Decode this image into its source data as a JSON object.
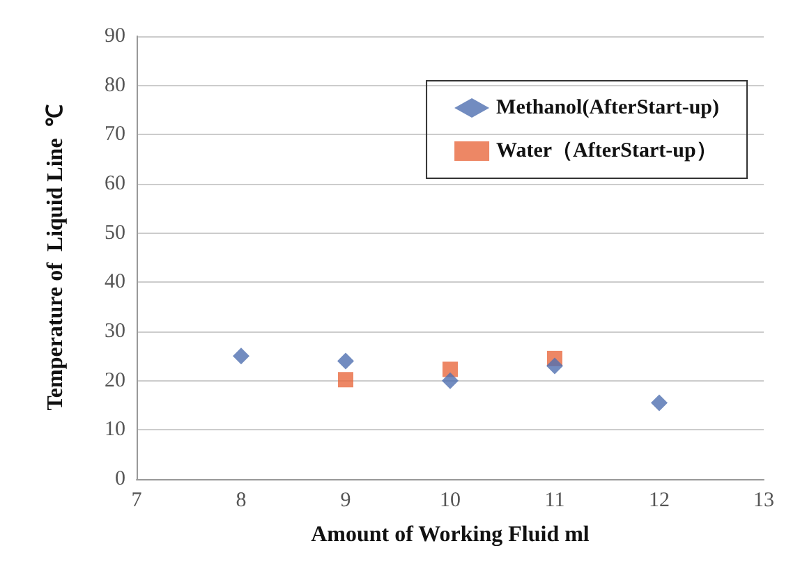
{
  "chart_data": {
    "type": "scatter",
    "xlabel": "Amount of Working Fluid ml",
    "ylabel": "Temperature of  Liquid Line  ℃",
    "x": [
      8,
      9,
      10,
      11,
      12
    ],
    "xlim": [
      7,
      13
    ],
    "xticks": [
      7,
      8,
      9,
      10,
      11,
      12,
      13
    ],
    "ylim": [
      0,
      90
    ],
    "yticks": [
      0,
      10,
      20,
      30,
      40,
      50,
      60,
      70,
      80,
      90
    ],
    "grid": "y",
    "legend": "top right",
    "series": [
      {
        "name": "Methanol(AfterStart-up)",
        "color": "#4f6fb0",
        "marker": "diamond",
        "values": [
          25,
          24,
          20,
          23,
          15.5
        ]
      },
      {
        "name": "Water（AfterStart-up）",
        "color": "#e8693f",
        "marker": "square",
        "x": [
          9,
          10,
          11
        ],
        "values": [
          20.2,
          22.3,
          24.5
        ]
      }
    ]
  }
}
